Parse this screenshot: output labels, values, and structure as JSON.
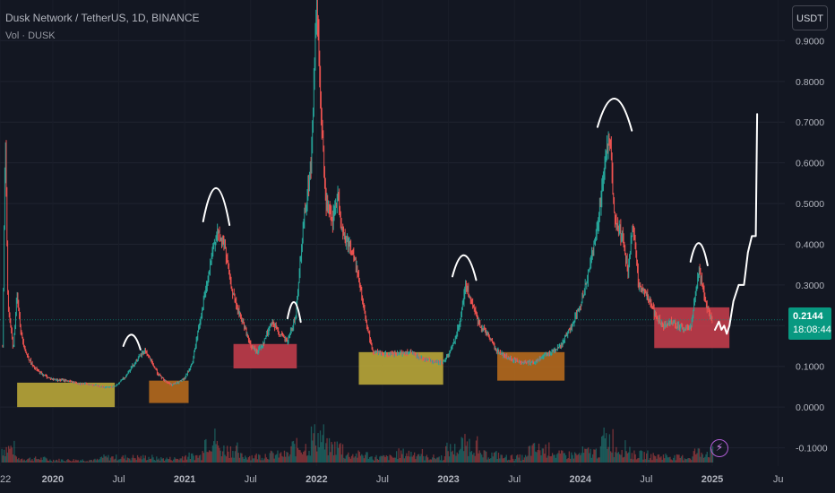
{
  "header": {
    "title": "Dusk Network / TetherUS, 1D, BINANCE",
    "volume_label": "Vol · DUSK",
    "currency": "USDT"
  },
  "last_price": {
    "price": "0.2144",
    "countdown": "18:08:44",
    "value": 0.2144,
    "color": "#089981"
  },
  "colors": {
    "background": "#131722",
    "up": "#26a69a",
    "down": "#ef5350",
    "yellow_zone": "#c9b53a",
    "orange_zone": "#c4711c",
    "red_zone": "#d2404e",
    "annotation": "#ffffff"
  },
  "icons": {
    "bolt": "lightning-bolt-icon"
  },
  "chart_data": {
    "type": "line",
    "title": "Dusk Network / TetherUS, 1D, BINANCE",
    "xlabel": "",
    "ylabel": "",
    "ylim": [
      -0.145,
      1.0
    ],
    "xlim": [
      2019.6,
      2025.55
    ],
    "y_ticks": [
      "0.9000",
      "0.8000",
      "0.7000",
      "0.6000",
      "0.5000",
      "0.4000",
      "0.3000",
      "0.2000",
      "0.1000",
      "0.0000",
      "-0.1000"
    ],
    "y_tick_values": [
      0.9,
      0.8,
      0.7,
      0.6,
      0.5,
      0.4,
      0.3,
      0.2,
      0.1,
      0.0,
      -0.1
    ],
    "x_ticks": [
      {
        "label": "22",
        "t": 2019.6
      },
      {
        "label": "2020",
        "t": 2020.0
      },
      {
        "label": "Jul",
        "t": 2020.5
      },
      {
        "label": "2021",
        "t": 2021.0
      },
      {
        "label": "Jul",
        "t": 2021.5
      },
      {
        "label": "2022",
        "t": 2022.0
      },
      {
        "label": "Jul",
        "t": 2022.5
      },
      {
        "label": "2023",
        "t": 2023.0
      },
      {
        "label": "Jul",
        "t": 2023.5
      },
      {
        "label": "2024",
        "t": 2024.0
      },
      {
        "label": "Jul",
        "t": 2024.5
      },
      {
        "label": "2025",
        "t": 2025.0
      },
      {
        "label": "Ju",
        "t": 2025.5
      }
    ],
    "series": [
      {
        "points": [
          [
            2019.62,
            0.15
          ],
          [
            2019.64,
            0.68
          ],
          [
            2019.66,
            0.25
          ],
          [
            2019.68,
            0.2
          ],
          [
            2019.7,
            0.14
          ],
          [
            2019.73,
            0.28
          ],
          [
            2019.76,
            0.18
          ],
          [
            2019.8,
            0.13
          ],
          [
            2019.85,
            0.1
          ],
          [
            2019.9,
            0.085
          ],
          [
            2019.95,
            0.075
          ],
          [
            2020.0,
            0.068
          ],
          [
            2020.1,
            0.065
          ],
          [
            2020.2,
            0.058
          ],
          [
            2020.3,
            0.055
          ],
          [
            2020.4,
            0.048
          ],
          [
            2020.48,
            0.052
          ],
          [
            2020.55,
            0.075
          ],
          [
            2020.6,
            0.1
          ],
          [
            2020.65,
            0.12
          ],
          [
            2020.7,
            0.14
          ],
          [
            2020.75,
            0.11
          ],
          [
            2020.8,
            0.08
          ],
          [
            2020.85,
            0.065
          ],
          [
            2020.9,
            0.055
          ],
          [
            2020.95,
            0.06
          ],
          [
            2021.0,
            0.07
          ],
          [
            2021.06,
            0.11
          ],
          [
            2021.12,
            0.22
          ],
          [
            2021.18,
            0.32
          ],
          [
            2021.24,
            0.43
          ],
          [
            2021.3,
            0.4
          ],
          [
            2021.35,
            0.3
          ],
          [
            2021.4,
            0.24
          ],
          [
            2021.45,
            0.2
          ],
          [
            2021.5,
            0.15
          ],
          [
            2021.55,
            0.135
          ],
          [
            2021.6,
            0.16
          ],
          [
            2021.66,
            0.21
          ],
          [
            2021.72,
            0.18
          ],
          [
            2021.78,
            0.16
          ],
          [
            2021.84,
            0.22
          ],
          [
            2021.9,
            0.45
          ],
          [
            2021.96,
            0.6
          ],
          [
            2022.0,
            1.0
          ],
          [
            2022.03,
            0.75
          ],
          [
            2022.07,
            0.5
          ],
          [
            2022.12,
            0.45
          ],
          [
            2022.16,
            0.52
          ],
          [
            2022.2,
            0.42
          ],
          [
            2022.25,
            0.4
          ],
          [
            2022.3,
            0.35
          ],
          [
            2022.36,
            0.24
          ],
          [
            2022.42,
            0.14
          ],
          [
            2022.5,
            0.13
          ],
          [
            2022.6,
            0.13
          ],
          [
            2022.7,
            0.135
          ],
          [
            2022.8,
            0.12
          ],
          [
            2022.9,
            0.11
          ],
          [
            2022.96,
            0.11
          ],
          [
            2023.02,
            0.14
          ],
          [
            2023.08,
            0.2
          ],
          [
            2023.13,
            0.3
          ],
          [
            2023.18,
            0.25
          ],
          [
            2023.24,
            0.2
          ],
          [
            2023.3,
            0.18
          ],
          [
            2023.36,
            0.14
          ],
          [
            2023.45,
            0.12
          ],
          [
            2023.55,
            0.11
          ],
          [
            2023.65,
            0.11
          ],
          [
            2023.75,
            0.13
          ],
          [
            2023.85,
            0.15
          ],
          [
            2023.92,
            0.19
          ],
          [
            2024.0,
            0.25
          ],
          [
            2024.06,
            0.33
          ],
          [
            2024.12,
            0.42
          ],
          [
            2024.18,
            0.58
          ],
          [
            2024.22,
            0.68
          ],
          [
            2024.26,
            0.45
          ],
          [
            2024.32,
            0.42
          ],
          [
            2024.36,
            0.33
          ],
          [
            2024.4,
            0.45
          ],
          [
            2024.44,
            0.3
          ],
          [
            2024.5,
            0.28
          ],
          [
            2024.56,
            0.23
          ],
          [
            2024.62,
            0.2
          ],
          [
            2024.7,
            0.21
          ],
          [
            2024.78,
            0.19
          ],
          [
            2024.84,
            0.2
          ],
          [
            2024.9,
            0.34
          ],
          [
            2024.94,
            0.27
          ],
          [
            2024.98,
            0.23
          ],
          [
            2025.0,
            0.2144
          ]
        ]
      }
    ],
    "volume": [
      [
        2019.63,
        0.55
      ],
      [
        2019.8,
        0.15
      ],
      [
        2020.1,
        0.1
      ],
      [
        2020.6,
        0.2
      ],
      [
        2020.9,
        0.15
      ],
      [
        2021.05,
        0.25
      ],
      [
        2021.2,
        0.9
      ],
      [
        2021.3,
        0.5
      ],
      [
        2021.5,
        0.25
      ],
      [
        2021.7,
        0.3
      ],
      [
        2021.9,
        0.6
      ],
      [
        2022.0,
        1.0
      ],
      [
        2022.1,
        0.6
      ],
      [
        2022.3,
        0.3
      ],
      [
        2022.5,
        0.2
      ],
      [
        2022.7,
        0.35
      ],
      [
        2022.9,
        0.2
      ],
      [
        2023.05,
        0.5
      ],
      [
        2023.13,
        0.7
      ],
      [
        2023.3,
        0.3
      ],
      [
        2023.5,
        0.2
      ],
      [
        2023.7,
        0.5
      ],
      [
        2023.9,
        0.3
      ],
      [
        2024.1,
        0.4
      ],
      [
        2024.2,
        0.9
      ],
      [
        2024.3,
        0.55
      ],
      [
        2024.45,
        0.3
      ],
      [
        2024.6,
        0.25
      ],
      [
        2024.8,
        0.2
      ],
      [
        2024.9,
        0.4
      ]
    ],
    "zones": [
      {
        "t0": 2019.73,
        "t1": 2020.47,
        "y0": 0.0,
        "y1": 0.06,
        "kind": "yellow"
      },
      {
        "t0": 2020.73,
        "t1": 2021.03,
        "y0": 0.01,
        "y1": 0.065,
        "kind": "orange"
      },
      {
        "t0": 2021.37,
        "t1": 2021.85,
        "y0": 0.095,
        "y1": 0.155,
        "kind": "red"
      },
      {
        "t0": 2022.32,
        "t1": 2022.96,
        "y0": 0.055,
        "y1": 0.135,
        "kind": "yellow"
      },
      {
        "t0": 2023.37,
        "t1": 2023.88,
        "y0": 0.065,
        "y1": 0.135,
        "kind": "orange"
      },
      {
        "t0": 2024.56,
        "t1": 2025.13,
        "y0": 0.145,
        "y1": 0.245,
        "kind": "red"
      }
    ],
    "arcs": [
      {
        "t": 2020.6,
        "y": 0.155,
        "w": 0.13,
        "h": 0.025
      },
      {
        "t": 2021.24,
        "y": 0.47,
        "w": 0.2,
        "h": 0.07
      },
      {
        "t": 2021.83,
        "y": 0.225,
        "w": 0.1,
        "h": 0.035
      },
      {
        "t": 2023.12,
        "y": 0.33,
        "w": 0.18,
        "h": 0.045
      },
      {
        "t": 2024.26,
        "y": 0.7,
        "w": 0.26,
        "h": 0.06
      },
      {
        "t": 2024.9,
        "y": 0.365,
        "w": 0.13,
        "h": 0.04
      }
    ],
    "forecast": [
      [
        2025.02,
        0.19
      ],
      [
        2025.05,
        0.21
      ],
      [
        2025.07,
        0.19
      ],
      [
        2025.09,
        0.2
      ],
      [
        2025.11,
        0.18
      ],
      [
        2025.13,
        0.2
      ],
      [
        2025.16,
        0.26
      ],
      [
        2025.2,
        0.3
      ],
      [
        2025.24,
        0.3
      ],
      [
        2025.27,
        0.38
      ],
      [
        2025.3,
        0.42
      ],
      [
        2025.33,
        0.42
      ],
      [
        2025.34,
        0.72
      ]
    ]
  }
}
